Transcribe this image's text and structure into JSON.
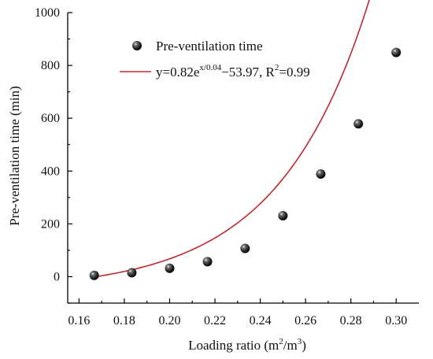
{
  "chart_data": {
    "type": "scatter",
    "xlabel": {
      "text": "Loading ratio (m",
      "sup1": "2",
      "mid": "/m",
      "sup2": "3",
      "end": ")"
    },
    "ylabel": "Pre-ventilation time (min)",
    "xlim": [
      0.155,
      0.31
    ],
    "ylim": [
      -100,
      1000
    ],
    "x_ticks": [
      0.16,
      0.18,
      0.2,
      0.22,
      0.24,
      0.26,
      0.28,
      0.3
    ],
    "x_tick_labels": [
      "0.16",
      "0.18",
      "0.20",
      "0.22",
      "0.24",
      "0.26",
      "0.28",
      "0.30"
    ],
    "y_ticks": [
      0,
      200,
      400,
      600,
      800,
      1000
    ],
    "y_tick_labels": [
      "0",
      "200",
      "400",
      "600",
      "800",
      "1000"
    ],
    "series": [
      {
        "name": "Pre-ventilation time",
        "kind": "scatter",
        "color": "#1a1a1a",
        "x": [
          0.1667,
          0.1833,
          0.2,
          0.2167,
          0.2333,
          0.25,
          0.2667,
          0.2833,
          0.3
        ],
        "y": [
          5,
          15,
          32,
          57,
          107,
          231,
          389,
          579,
          849
        ]
      },
      {
        "name": "fit",
        "kind": "line",
        "color": "#c0282d",
        "model": {
          "a": 0.82,
          "b": 0.04,
          "c": -53.97
        },
        "x_range": [
          0.1667,
          0.3
        ]
      }
    ],
    "legend": {
      "position": "top-left",
      "entries": [
        {
          "text": "Pre-ventilation time"
        },
        {
          "prefix": "y=0.82e",
          "sup": "x/0.04",
          "middle": "−53.97, R",
          "sup2": "2",
          "suffix": "=0.99"
        }
      ]
    }
  }
}
